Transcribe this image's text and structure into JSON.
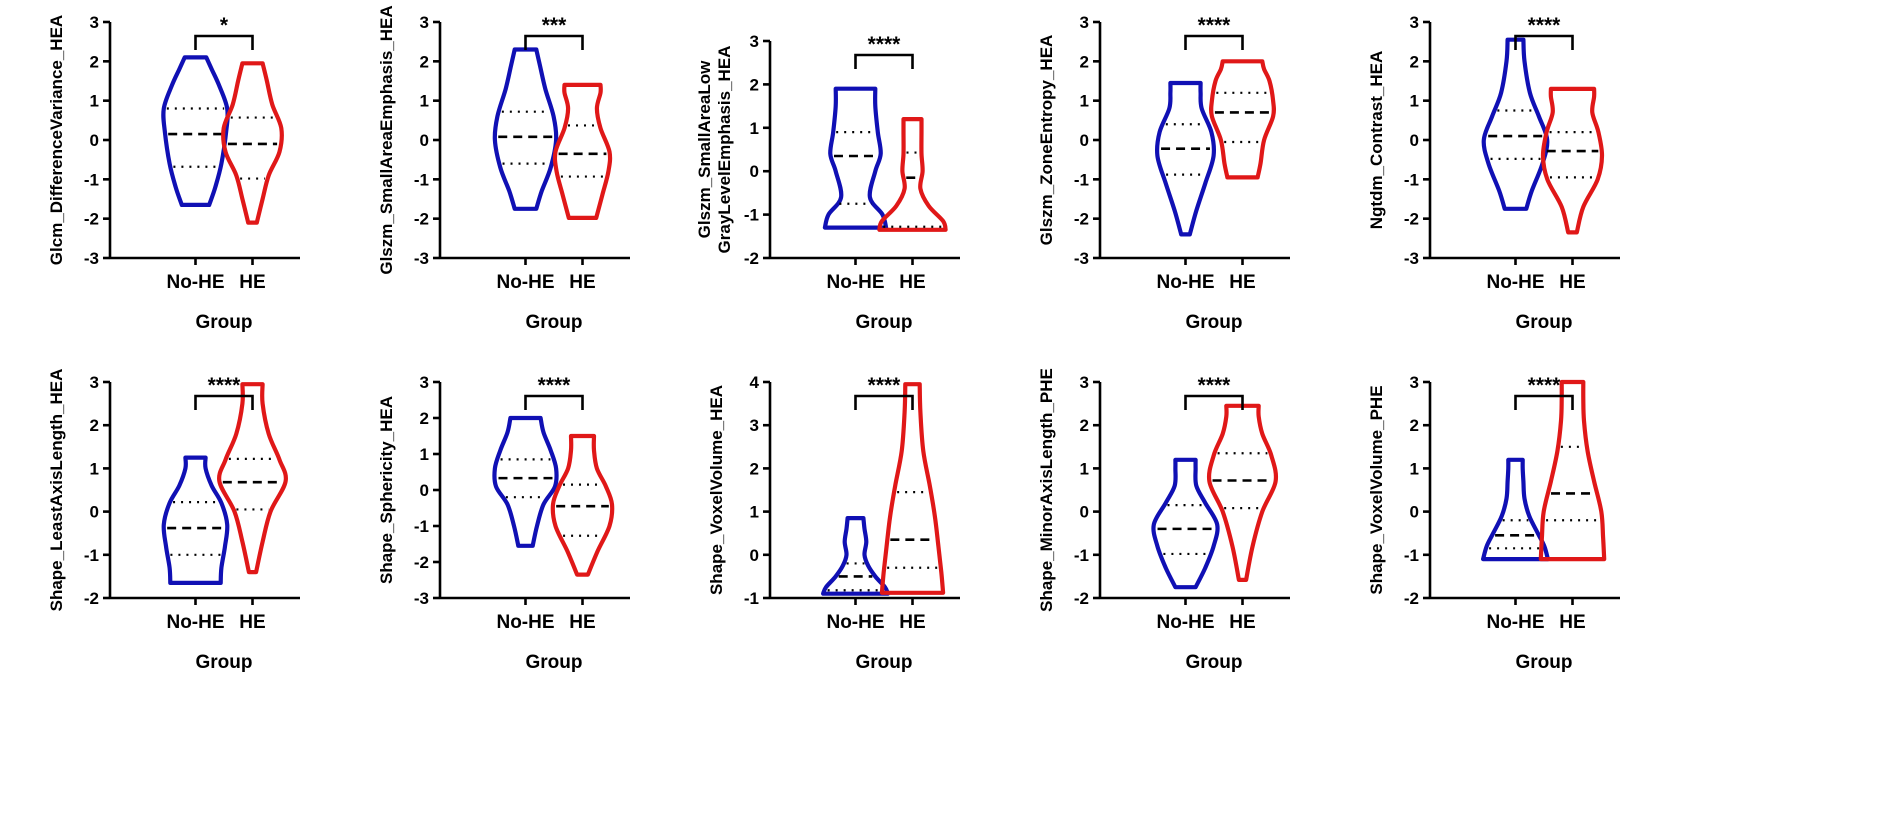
{
  "figure": {
    "colors": {
      "No-HE": "#1010b4",
      "HE": "#e01818",
      "axis": "#000000"
    },
    "group_label": "Group",
    "categories": [
      "No-HE",
      "HE"
    ]
  },
  "chart_data": [
    {
      "type": "violin",
      "ylabel": "Glcm_DifferenceVariance_HEA",
      "xlabel": "Group",
      "categories": [
        "No-HE",
        "HE"
      ],
      "ylim": [
        -3,
        3
      ],
      "yticks": [
        -3,
        -2,
        -1,
        0,
        1,
        2,
        3
      ],
      "significance": "*",
      "series": [
        {
          "name": "No-HE",
          "min": -1.65,
          "max": 2.1,
          "q1": -0.68,
          "median": 0.15,
          "q3": 0.8,
          "profile": [
            [
              -1.65,
              0.38
            ],
            [
              -1.2,
              0.55
            ],
            [
              -0.6,
              0.72
            ],
            [
              0.2,
              0.85
            ],
            [
              0.8,
              0.88
            ],
            [
              1.4,
              0.65
            ],
            [
              1.8,
              0.45
            ],
            [
              2.1,
              0.3
            ]
          ]
        },
        {
          "name": "HE",
          "min": -2.1,
          "max": 1.95,
          "q1": -0.98,
          "median": -0.1,
          "q3": 0.57,
          "profile": [
            [
              -2.1,
              0.12
            ],
            [
              -1.5,
              0.28
            ],
            [
              -0.9,
              0.45
            ],
            [
              -0.3,
              0.75
            ],
            [
              0.3,
              0.8
            ],
            [
              0.9,
              0.55
            ],
            [
              1.5,
              0.4
            ],
            [
              1.95,
              0.28
            ]
          ]
        }
      ]
    },
    {
      "type": "violin",
      "ylabel": "Glszm_SmallAreaEmphasis_HEA",
      "xlabel": "Group",
      "categories": [
        "No-HE",
        "HE"
      ],
      "ylim": [
        -3,
        3
      ],
      "yticks": [
        -3,
        -2,
        -1,
        0,
        1,
        2,
        3
      ],
      "significance": "***",
      "series": [
        {
          "name": "No-HE",
          "min": -1.75,
          "max": 2.3,
          "q1": -0.6,
          "median": 0.08,
          "q3": 0.72,
          "profile": [
            [
              -1.75,
              0.3
            ],
            [
              -1.3,
              0.45
            ],
            [
              -0.7,
              0.7
            ],
            [
              0.0,
              0.85
            ],
            [
              0.6,
              0.78
            ],
            [
              1.3,
              0.55
            ],
            [
              1.9,
              0.4
            ],
            [
              2.3,
              0.3
            ]
          ]
        },
        {
          "name": "HE",
          "min": -1.98,
          "max": 1.4,
          "q1": -0.93,
          "median": -0.35,
          "q3": 0.37,
          "profile": [
            [
              -1.98,
              0.38
            ],
            [
              -1.4,
              0.55
            ],
            [
              -0.8,
              0.72
            ],
            [
              -0.3,
              0.75
            ],
            [
              0.3,
              0.5
            ],
            [
              0.8,
              0.4
            ],
            [
              1.2,
              0.5
            ],
            [
              1.4,
              0.5
            ]
          ]
        }
      ]
    },
    {
      "type": "violin",
      "ylabel": "Glszm_SmallAreaLow GrayLevelEmphasis_HEA",
      "xlabel": "Group",
      "categories": [
        "No-HE",
        "HE"
      ],
      "ylim": [
        -2,
        3
      ],
      "yticks": [
        -2,
        -1,
        0,
        1,
        2,
        3
      ],
      "significance": "****",
      "series": [
        {
          "name": "No-HE",
          "min": -1.3,
          "max": 1.9,
          "q1": -0.75,
          "median": 0.35,
          "q3": 0.9,
          "profile": [
            [
              -1.3,
              0.85
            ],
            [
              -1.0,
              0.75
            ],
            [
              -0.6,
              0.4
            ],
            [
              0.0,
              0.55
            ],
            [
              0.4,
              0.7
            ],
            [
              0.9,
              0.62
            ],
            [
              1.5,
              0.55
            ],
            [
              1.9,
              0.55
            ]
          ]
        },
        {
          "name": "HE",
          "min": -1.35,
          "max": 1.2,
          "q1": -1.28,
          "median": -0.15,
          "q3": 0.43,
          "profile": [
            [
              -1.35,
              0.92
            ],
            [
              -1.15,
              0.85
            ],
            [
              -0.8,
              0.45
            ],
            [
              -0.4,
              0.22
            ],
            [
              0.0,
              0.28
            ],
            [
              0.4,
              0.25
            ],
            [
              0.9,
              0.25
            ],
            [
              1.2,
              0.25
            ]
          ]
        }
      ]
    },
    {
      "type": "violin",
      "ylabel": "Glszm_ZoneEntropy_HEA",
      "xlabel": "Group",
      "categories": [
        "No-HE",
        "HE"
      ],
      "ylim": [
        -3,
        3
      ],
      "yticks": [
        -3,
        -2,
        -1,
        0,
        1,
        2,
        3
      ],
      "significance": "****",
      "series": [
        {
          "name": "No-HE",
          "min": -2.4,
          "max": 1.45,
          "q1": -0.88,
          "median": -0.22,
          "q3": 0.4,
          "profile": [
            [
              -2.4,
              0.12
            ],
            [
              -1.8,
              0.3
            ],
            [
              -1.1,
              0.55
            ],
            [
              -0.4,
              0.78
            ],
            [
              0.2,
              0.72
            ],
            [
              0.8,
              0.45
            ],
            [
              1.2,
              0.42
            ],
            [
              1.45,
              0.42
            ]
          ]
        },
        {
          "name": "HE",
          "min": -0.95,
          "max": 2.0,
          "q1": -0.05,
          "median": 0.7,
          "q3": 1.2,
          "profile": [
            [
              -0.95,
              0.42
            ],
            [
              -0.6,
              0.5
            ],
            [
              0.0,
              0.6
            ],
            [
              0.6,
              0.85
            ],
            [
              1.0,
              0.85
            ],
            [
              1.5,
              0.75
            ],
            [
              1.8,
              0.6
            ],
            [
              2.0,
              0.55
            ]
          ]
        }
      ]
    },
    {
      "type": "violin",
      "ylabel": "Ngtdm_Contrast_HEA",
      "xlabel": "Group",
      "categories": [
        "No-HE",
        "HE"
      ],
      "ylim": [
        -3,
        3
      ],
      "yticks": [
        -3,
        -2,
        -1,
        0,
        1,
        2,
        3
      ],
      "significance": "****",
      "series": [
        {
          "name": "No-HE",
          "min": -1.75,
          "max": 2.55,
          "q1": -0.48,
          "median": 0.1,
          "q3": 0.75,
          "profile": [
            [
              -1.75,
              0.3
            ],
            [
              -1.3,
              0.45
            ],
            [
              -0.6,
              0.75
            ],
            [
              0.0,
              0.88
            ],
            [
              0.6,
              0.65
            ],
            [
              1.2,
              0.4
            ],
            [
              2.0,
              0.25
            ],
            [
              2.55,
              0.22
            ]
          ]
        },
        {
          "name": "HE",
          "min": -2.35,
          "max": 1.3,
          "q1": -0.95,
          "median": -0.28,
          "q3": 0.2,
          "profile": [
            [
              -2.35,
              0.12
            ],
            [
              -1.7,
              0.3
            ],
            [
              -1.0,
              0.7
            ],
            [
              -0.4,
              0.82
            ],
            [
              0.2,
              0.72
            ],
            [
              0.7,
              0.55
            ],
            [
              1.1,
              0.6
            ],
            [
              1.3,
              0.6
            ]
          ]
        }
      ]
    },
    {
      "type": "violin",
      "ylabel": "Shape_LeastAxisLength_HEA",
      "xlabel": "Group",
      "categories": [
        "No-HE",
        "HE"
      ],
      "ylim": [
        -2,
        3
      ],
      "yticks": [
        -2,
        -1,
        0,
        1,
        2,
        3
      ],
      "significance": "****",
      "series": [
        {
          "name": "No-HE",
          "min": -1.65,
          "max": 1.25,
          "q1": -1.0,
          "median": -0.38,
          "q3": 0.22,
          "profile": [
            [
              -1.65,
              0.7
            ],
            [
              -1.3,
              0.72
            ],
            [
              -0.8,
              0.82
            ],
            [
              -0.3,
              0.88
            ],
            [
              0.2,
              0.72
            ],
            [
              0.6,
              0.45
            ],
            [
              1.0,
              0.28
            ],
            [
              1.25,
              0.28
            ]
          ]
        },
        {
          "name": "HE",
          "min": -1.4,
          "max": 2.95,
          "q1": 0.05,
          "median": 0.68,
          "q3": 1.22,
          "profile": [
            [
              -1.4,
              0.1
            ],
            [
              -0.7,
              0.28
            ],
            [
              0.0,
              0.5
            ],
            [
              0.7,
              0.92
            ],
            [
              1.2,
              0.75
            ],
            [
              1.8,
              0.45
            ],
            [
              2.5,
              0.28
            ],
            [
              2.95,
              0.28
            ]
          ]
        }
      ]
    },
    {
      "type": "violin",
      "ylabel": "Shape_Sphericity_HEA",
      "xlabel": "Group",
      "categories": [
        "No-HE",
        "HE"
      ],
      "ylim": [
        -3,
        3
      ],
      "yticks": [
        -3,
        -2,
        -1,
        0,
        1,
        2,
        3
      ],
      "significance": "****",
      "series": [
        {
          "name": "No-HE",
          "min": -1.55,
          "max": 2.0,
          "q1": -0.2,
          "median": 0.33,
          "q3": 0.85,
          "profile": [
            [
              -1.55,
              0.2
            ],
            [
              -1.0,
              0.32
            ],
            [
              -0.4,
              0.5
            ],
            [
              0.1,
              0.82
            ],
            [
              0.6,
              0.85
            ],
            [
              1.1,
              0.7
            ],
            [
              1.6,
              0.5
            ],
            [
              2.0,
              0.42
            ]
          ]
        },
        {
          "name": "HE",
          "min": -2.35,
          "max": 1.5,
          "q1": -1.27,
          "median": -0.45,
          "q3": 0.15,
          "profile": [
            [
              -2.35,
              0.15
            ],
            [
              -1.7,
              0.42
            ],
            [
              -1.0,
              0.75
            ],
            [
              -0.4,
              0.82
            ],
            [
              0.1,
              0.65
            ],
            [
              0.6,
              0.4
            ],
            [
              1.1,
              0.32
            ],
            [
              1.5,
              0.32
            ]
          ]
        }
      ]
    },
    {
      "type": "violin",
      "ylabel": "Shape_VoxelVolume_HEA",
      "xlabel": "Group",
      "categories": [
        "No-HE",
        "HE"
      ],
      "ylim": [
        -1,
        4
      ],
      "yticks": [
        -1,
        0,
        1,
        2,
        3,
        4
      ],
      "significance": "****",
      "series": [
        {
          "name": "No-HE",
          "min": -0.9,
          "max": 0.85,
          "q1": -0.82,
          "median": -0.5,
          "q3": -0.2,
          "profile": [
            [
              -0.9,
              0.9
            ],
            [
              -0.75,
              0.82
            ],
            [
              -0.5,
              0.55
            ],
            [
              -0.25,
              0.35
            ],
            [
              0.0,
              0.25
            ],
            [
              0.3,
              0.3
            ],
            [
              0.6,
              0.25
            ],
            [
              0.85,
              0.22
            ]
          ]
        },
        {
          "name": "HE",
          "min": -0.88,
          "max": 3.95,
          "q1": -0.3,
          "median": 0.35,
          "q3": 1.45,
          "profile": [
            [
              -0.88,
              0.85
            ],
            [
              -0.4,
              0.8
            ],
            [
              0.2,
              0.72
            ],
            [
              0.9,
              0.62
            ],
            [
              1.6,
              0.48
            ],
            [
              2.4,
              0.3
            ],
            [
              3.3,
              0.22
            ],
            [
              3.95,
              0.2
            ]
          ]
        }
      ]
    },
    {
      "type": "violin",
      "ylabel": "Shape_MinorAxisLength_PHE",
      "xlabel": "Group",
      "categories": [
        "No-HE",
        "HE"
      ],
      "ylim": [
        -2,
        3
      ],
      "yticks": [
        -2,
        -1,
        0,
        1,
        2,
        3
      ],
      "significance": "****",
      "series": [
        {
          "name": "No-HE",
          "min": -1.75,
          "max": 1.2,
          "q1": -0.98,
          "median": -0.4,
          "q3": 0.15,
          "profile": [
            [
              -1.75,
              0.28
            ],
            [
              -1.3,
              0.55
            ],
            [
              -0.8,
              0.78
            ],
            [
              -0.3,
              0.88
            ],
            [
              0.2,
              0.55
            ],
            [
              0.6,
              0.3
            ],
            [
              1.0,
              0.28
            ],
            [
              1.2,
              0.28
            ]
          ]
        },
        {
          "name": "HE",
          "min": -1.58,
          "max": 2.45,
          "q1": 0.08,
          "median": 0.72,
          "q3": 1.35,
          "profile": [
            [
              -1.58,
              0.1
            ],
            [
              -0.8,
              0.28
            ],
            [
              0.0,
              0.55
            ],
            [
              0.7,
              0.92
            ],
            [
              1.3,
              0.8
            ],
            [
              1.8,
              0.55
            ],
            [
              2.2,
              0.45
            ],
            [
              2.45,
              0.45
            ]
          ]
        }
      ]
    },
    {
      "type": "violin",
      "ylabel": "Shape_VoxelVolume_PHE",
      "xlabel": "Group",
      "categories": [
        "No-HE",
        "HE"
      ],
      "ylim": [
        -2,
        3
      ],
      "yticks": [
        -2,
        -1,
        0,
        1,
        2,
        3
      ],
      "significance": "****",
      "series": [
        {
          "name": "No-HE",
          "min": -1.1,
          "max": 1.2,
          "q1": -0.85,
          "median": -0.55,
          "q3": -0.2,
          "profile": [
            [
              -1.1,
              0.9
            ],
            [
              -0.8,
              0.8
            ],
            [
              -0.5,
              0.62
            ],
            [
              -0.1,
              0.38
            ],
            [
              0.3,
              0.25
            ],
            [
              0.7,
              0.22
            ],
            [
              1.0,
              0.2
            ],
            [
              1.2,
              0.2
            ]
          ]
        },
        {
          "name": "HE",
          "min": -1.1,
          "max": 3.0,
          "q1": -0.2,
          "median": 0.42,
          "q3": 1.5,
          "profile": [
            [
              -1.1,
              0.88
            ],
            [
              -0.6,
              0.85
            ],
            [
              0.0,
              0.8
            ],
            [
              0.7,
              0.6
            ],
            [
              1.4,
              0.42
            ],
            [
              2.1,
              0.32
            ],
            [
              2.6,
              0.3
            ],
            [
              3.0,
              0.3
            ]
          ]
        }
      ]
    }
  ]
}
